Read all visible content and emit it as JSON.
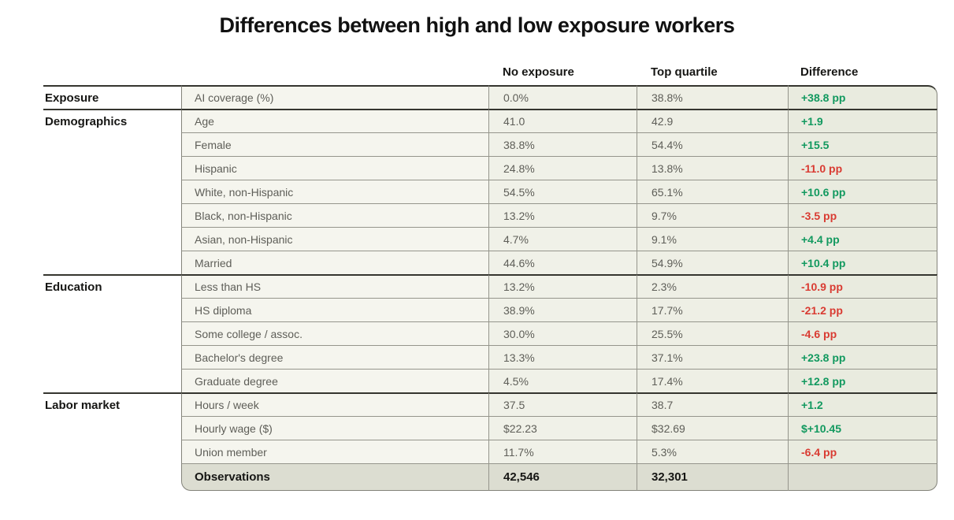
{
  "title": "Differences between high and low exposure workers",
  "colors": {
    "positive_difference": "#12995f",
    "negative_difference": "#d93b32"
  },
  "chart_data": {
    "type": "table",
    "title": "Differences between high and low exposure workers",
    "columns": [
      "No exposure",
      "Top quartile",
      "Difference"
    ],
    "groups": [
      {
        "label": "Exposure",
        "rows": [
          {
            "label": "AI coverage (%)",
            "no_exposure": "0.0%",
            "top_quartile": "38.8%",
            "difference": "+38.8 pp",
            "sign": "positive"
          }
        ]
      },
      {
        "label": "Demographics",
        "rows": [
          {
            "label": "Age",
            "no_exposure": "41.0",
            "top_quartile": "42.9",
            "difference": "+1.9",
            "sign": "positive"
          },
          {
            "label": "Female",
            "no_exposure": "38.8%",
            "top_quartile": "54.4%",
            "difference": "+15.5",
            "sign": "positive"
          },
          {
            "label": "Hispanic",
            "no_exposure": "24.8%",
            "top_quartile": "13.8%",
            "difference": "-11.0 pp",
            "sign": "negative"
          },
          {
            "label": "White, non-Hispanic",
            "no_exposure": "54.5%",
            "top_quartile": "65.1%",
            "difference": "+10.6 pp",
            "sign": "positive"
          },
          {
            "label": "Black, non-Hispanic",
            "no_exposure": "13.2%",
            "top_quartile": "9.7%",
            "difference": "-3.5 pp",
            "sign": "negative"
          },
          {
            "label": "Asian, non-Hispanic",
            "no_exposure": "4.7%",
            "top_quartile": "9.1%",
            "difference": "+4.4 pp",
            "sign": "positive"
          },
          {
            "label": "Married",
            "no_exposure": "44.6%",
            "top_quartile": "54.9%",
            "difference": "+10.4 pp",
            "sign": "positive"
          }
        ]
      },
      {
        "label": "Education",
        "rows": [
          {
            "label": "Less than HS",
            "no_exposure": "13.2%",
            "top_quartile": "2.3%",
            "difference": "-10.9 pp",
            "sign": "negative"
          },
          {
            "label": "HS diploma",
            "no_exposure": "38.9%",
            "top_quartile": "17.7%",
            "difference": "-21.2 pp",
            "sign": "negative"
          },
          {
            "label": "Some college / assoc.",
            "no_exposure": "30.0%",
            "top_quartile": "25.5%",
            "difference": "-4.6 pp",
            "sign": "negative"
          },
          {
            "label": "Bachelor's degree",
            "no_exposure": "13.3%",
            "top_quartile": "37.1%",
            "difference": "+23.8 pp",
            "sign": "positive"
          },
          {
            "label": "Graduate degree",
            "no_exposure": "4.5%",
            "top_quartile": "17.4%",
            "difference": "+12.8 pp",
            "sign": "positive"
          }
        ]
      },
      {
        "label": "Labor market",
        "rows": [
          {
            "label": "Hours / week",
            "no_exposure": "37.5",
            "top_quartile": "38.7",
            "difference": "+1.2",
            "sign": "positive"
          },
          {
            "label": "Hourly wage ($)",
            "no_exposure": "$22.23",
            "top_quartile": "$32.69",
            "difference": "$+10.45",
            "sign": "positive"
          },
          {
            "label": "Union member",
            "no_exposure": "11.7%",
            "top_quartile": "5.3%",
            "difference": "-6.4 pp",
            "sign": "negative"
          }
        ]
      }
    ],
    "footer": {
      "label": "Observations",
      "no_exposure": "42,546",
      "top_quartile": "32,301",
      "difference": ""
    }
  }
}
